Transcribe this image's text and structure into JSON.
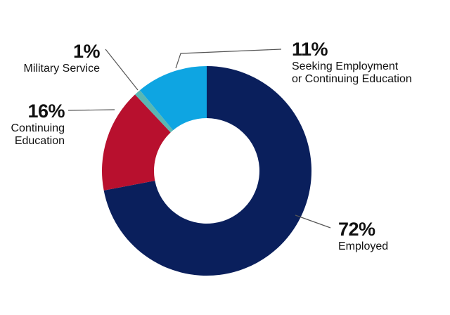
{
  "chart_data": {
    "type": "pie",
    "variant": "donut",
    "title": "",
    "slices": [
      {
        "label": "Employed",
        "value": 72,
        "value_label": "72%",
        "color": "#0a1f5c"
      },
      {
        "label": "Continuing Education",
        "value": 16,
        "value_label": "16%",
        "color": "#b8102e"
      },
      {
        "label": "Military Service",
        "value": 1,
        "value_label": "1%",
        "color": "#5ab7b3"
      },
      {
        "label": "Seeking Employment or Continuing Education",
        "value": 11,
        "value_label": "11%",
        "color": "#0ea5e2"
      }
    ],
    "legend": "none (callout labels)"
  },
  "labels": {
    "employed_pct": "72%",
    "employed_name": "Employed",
    "continuing_pct": "16%",
    "continuing_name": "Continuing Education",
    "military_pct": "1%",
    "military_name": "Military Service",
    "seeking_pct": "11%",
    "seeking_name": "Seeking Employment or Continuing Education"
  }
}
